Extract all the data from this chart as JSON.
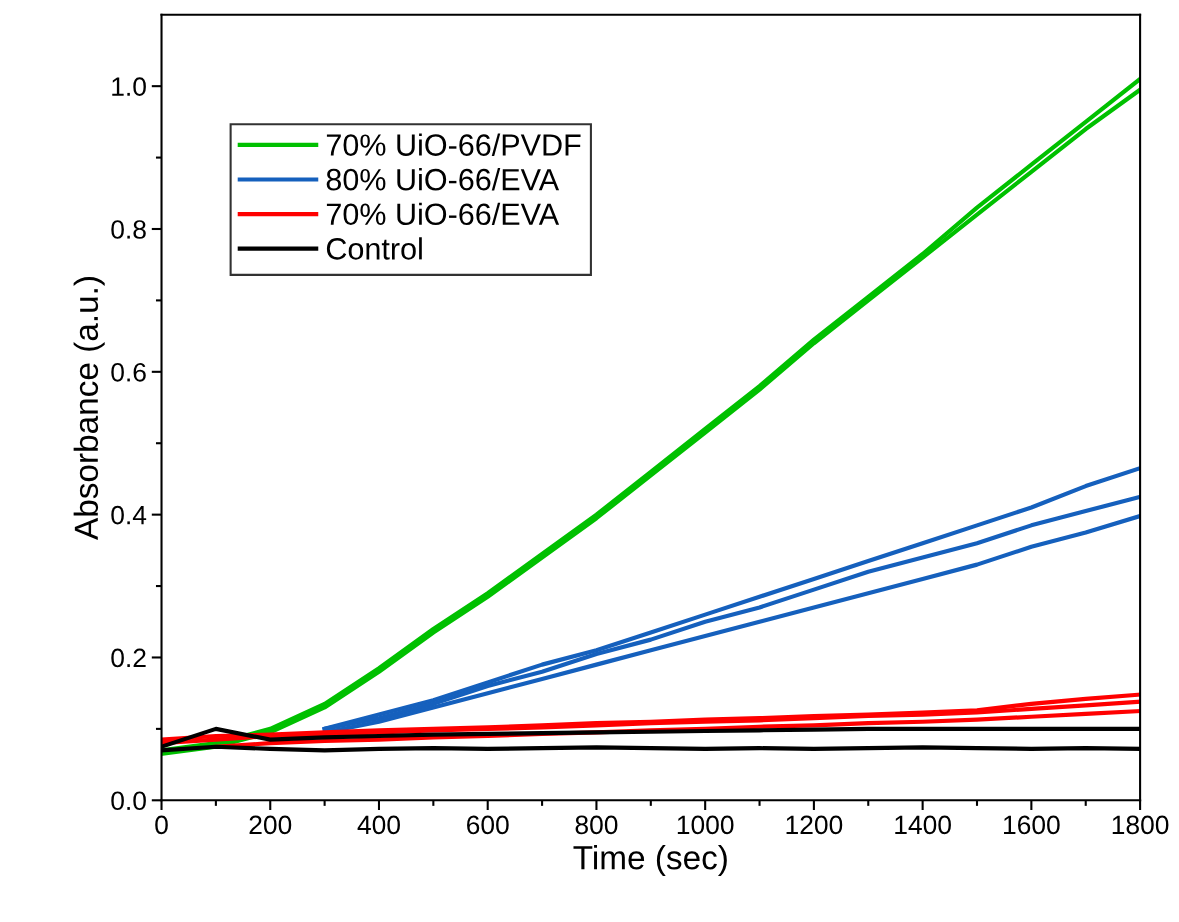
{
  "chart_data": {
    "type": "line",
    "xlabel": "Time (sec)",
    "ylabel": "Absorbance (a.u.)",
    "x": [
      0,
      100,
      200,
      300,
      400,
      500,
      600,
      700,
      800,
      900,
      1000,
      1100,
      1200,
      1300,
      1400,
      1500,
      1600,
      1700,
      1800
    ],
    "series": [
      {
        "name": "70% UiO-66/PVDF",
        "color": "#00c000",
        "values": [
          0.07,
          0.08,
          0.1,
          0.135,
          0.185,
          0.24,
          0.29,
          0.345,
          0.4,
          0.46,
          0.52,
          0.58,
          0.645,
          0.705,
          0.765,
          0.83,
          0.89,
          0.95,
          1.01
        ]
      },
      {
        "color": "#00c000",
        "values": [
          0.065,
          0.075,
          0.095,
          0.13,
          0.18,
          0.235,
          0.285,
          0.34,
          0.395,
          0.455,
          0.515,
          0.575,
          0.64,
          0.7,
          0.76,
          0.82,
          0.88,
          0.94,
          0.995
        ]
      },
      {
        "name": "80% UiO-66/EVA",
        "color": "#1560bd",
        "values": [
          null,
          null,
          null,
          0.1,
          0.12,
          0.14,
          0.165,
          0.19,
          0.21,
          0.235,
          0.26,
          0.285,
          0.31,
          0.335,
          0.36,
          0.385,
          0.41,
          0.44,
          0.465
        ]
      },
      {
        "color": "#1560bd",
        "values": [
          null,
          null,
          null,
          0.1,
          0.115,
          0.135,
          0.16,
          0.18,
          0.205,
          0.225,
          0.25,
          0.27,
          0.295,
          0.32,
          0.34,
          0.36,
          0.385,
          0.405,
          0.425
        ]
      },
      {
        "color": "#1560bd",
        "values": [
          null,
          null,
          null,
          0.095,
          0.11,
          0.13,
          0.15,
          0.17,
          0.19,
          0.21,
          0.23,
          0.25,
          0.27,
          0.29,
          0.31,
          0.33,
          0.355,
          0.375,
          0.398
        ]
      },
      {
        "name": "70% UiO-66/EVA",
        "color": "#ff0000",
        "values": [
          0.085,
          0.09,
          0.092,
          0.095,
          0.098,
          0.1,
          0.102,
          0.105,
          0.108,
          0.11,
          0.113,
          0.115,
          0.118,
          0.12,
          0.123,
          0.126,
          0.135,
          0.142,
          0.148
        ]
      },
      {
        "color": "#ff0000",
        "values": [
          0.08,
          0.085,
          0.09,
          0.092,
          0.095,
          0.098,
          0.1,
          0.102,
          0.105,
          0.108,
          0.11,
          0.112,
          0.115,
          0.118,
          0.12,
          0.123,
          0.128,
          0.133,
          0.138
        ]
      },
      {
        "color": "#ff0000",
        "values": [
          null,
          0.075,
          0.08,
          0.083,
          0.085,
          0.088,
          0.09,
          0.093,
          0.095,
          0.098,
          0.1,
          0.103,
          0.105,
          0.108,
          0.11,
          0.113,
          0.117,
          0.121,
          0.125
        ]
      },
      {
        "name": "Control",
        "color": "#000000",
        "values": [
          0.075,
          0.1,
          0.085,
          0.088,
          0.09,
          0.092,
          0.093,
          0.094,
          0.095,
          0.096,
          0.097,
          0.098,
          0.099,
          0.1,
          0.1,
          0.1,
          0.1,
          0.1,
          0.1
        ]
      },
      {
        "color": "#000000",
        "values": [
          0.07,
          0.075,
          0.072,
          0.07,
          0.072,
          0.073,
          0.072,
          0.073,
          0.074,
          0.073,
          0.072,
          0.073,
          0.072,
          0.073,
          0.074,
          0.073,
          0.072,
          0.073,
          0.072
        ]
      }
    ],
    "xlim": [
      0,
      1800
    ],
    "ylim": [
      0,
      1.1
    ],
    "xticks": [
      0,
      {
        "value": 100,
        "label": null
      },
      200,
      {
        "value": 300,
        "label": null
      },
      400,
      {
        "value": 500,
        "label": null
      },
      600,
      {
        "value": 700,
        "label": null
      },
      800,
      {
        "value": 900,
        "label": null
      },
      1000,
      {
        "value": 1100,
        "label": null
      },
      1200,
      {
        "value": 1300,
        "label": null
      },
      1400,
      {
        "value": 1500,
        "label": null
      },
      1600,
      {
        "value": 1700,
        "label": null
      },
      1800
    ],
    "yticks": [
      {
        "value": 0,
        "label": "0.0"
      },
      {
        "value": 0.1,
        "label": null
      },
      {
        "value": 0.2,
        "label": "0.2"
      },
      {
        "value": 0.3,
        "label": null
      },
      {
        "value": 0.4,
        "label": "0.4"
      },
      {
        "value": 0.5,
        "label": null
      },
      {
        "value": 0.6,
        "label": "0.6"
      },
      {
        "value": 0.7,
        "label": null
      },
      {
        "value": 0.8,
        "label": "0.8"
      },
      {
        "value": 0.9,
        "label": null
      },
      {
        "value": 1.0,
        "label": "1.0"
      }
    ],
    "grid": false,
    "legend": "top left",
    "marker": "none",
    "line_style": "solid"
  }
}
